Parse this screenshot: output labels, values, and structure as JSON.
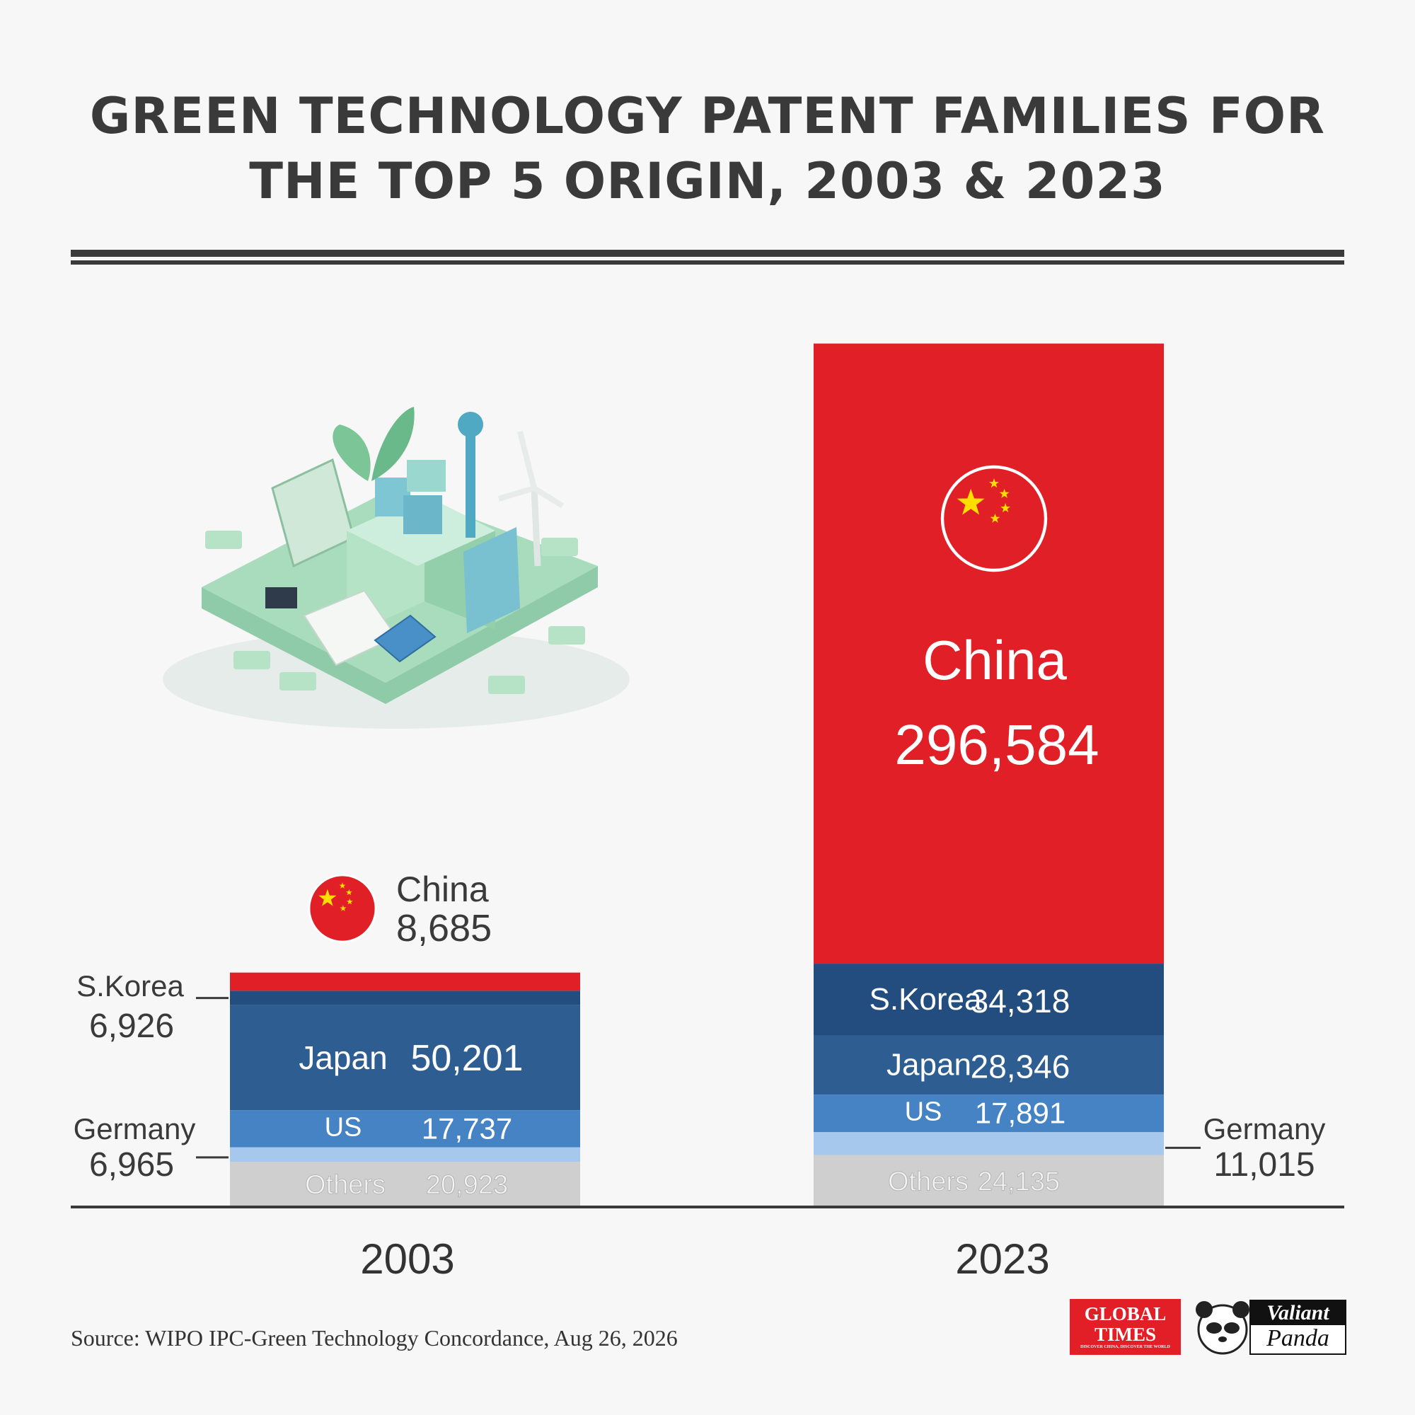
{
  "title_line1": "GREEN TECHNOLOGY PATENT FAMILIES FOR",
  "title_line2": "THE TOP 5 ORIGIN, 2003 & 2023",
  "source": "Source: WIPO IPC-Green Technology Concordance, Aug 26, 2026",
  "logos": {
    "global_times_line1": "GLOBAL",
    "global_times_line2": "TIMES",
    "global_times_tagline": "DISCOVER CHINA, DISCOVER THE WORLD",
    "valiant_panda_line1": "Valiant",
    "valiant_panda_line2": "Panda"
  },
  "colors": {
    "China": "#e11f26",
    "S.Korea": "#234c7f",
    "Japan": "#2e5d92",
    "US": "#4583c4",
    "Germany": "#a6c8ec",
    "Others": "#cfcfcf"
  },
  "chart_data": {
    "type": "bar",
    "stacked": true,
    "categories": [
      "2003",
      "2023"
    ],
    "series": [
      {
        "name": "Others",
        "values": [
          20923,
          24135
        ]
      },
      {
        "name": "Germany",
        "values": [
          6965,
          11015
        ]
      },
      {
        "name": "US",
        "values": [
          17737,
          17891
        ]
      },
      {
        "name": "Japan",
        "values": [
          50201,
          28346
        ]
      },
      {
        "name": "S.Korea",
        "values": [
          6926,
          34318
        ]
      },
      {
        "name": "China",
        "values": [
          8685,
          296584
        ]
      }
    ],
    "value_labels": {
      "Others": [
        "20,923",
        "24,135"
      ],
      "Germany": [
        "6,965",
        "11,015"
      ],
      "US": [
        "17,737",
        "17,891"
      ],
      "Japan": [
        "50,201",
        "28,346"
      ],
      "S.Korea": [
        "6,926",
        "34,318"
      ],
      "China": [
        "8,685",
        "296,584"
      ]
    },
    "title": "GREEN TECHNOLOGY PATENT FAMILIES FOR THE TOP 5 ORIGIN, 2003 & 2023",
    "xlabel": "",
    "ylabel": "",
    "ylim": [
      0,
      412814
    ]
  }
}
